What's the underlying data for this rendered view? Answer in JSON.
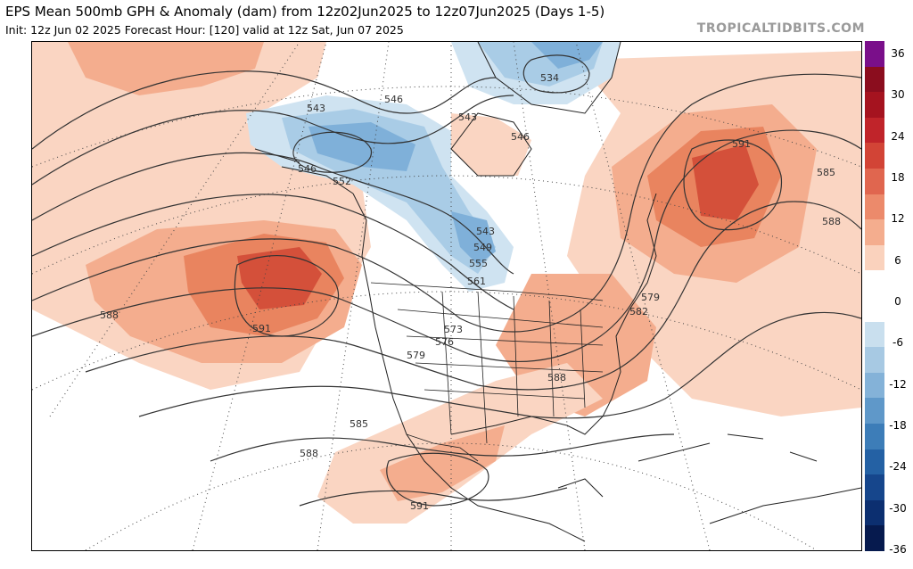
{
  "header": {
    "title": "EPS Mean 500mb GPH & Anomaly (dam) from 12z02Jun2025 to 12z07Jun2025 (Days 1-5)",
    "subtitle": "Init: 12z Jun 02 2025   Forecast Hour: [120]   valid at 12z Sat, Jun 07 2025",
    "brand": "TROPICALTIDBITS.COM"
  },
  "colorbar": {
    "ticks": [
      "36",
      "30",
      "24",
      "18",
      "12",
      "6",
      "0",
      "-6",
      "-12",
      "-18",
      "-24",
      "-30",
      "-36"
    ],
    "colors": [
      "#7a0f8a",
      "#8b0d1e",
      "#a5131f",
      "#c0242a",
      "#d24436",
      "#e0664f",
      "#ec8a6b",
      "#f4ad8e",
      "#fad2bd",
      "#ffffff",
      "#ffffff",
      "#c9dfee",
      "#a7c9e3",
      "#84b2d8",
      "#5f98c9",
      "#3d7db8",
      "#2461a4",
      "#16468c",
      "#0c2f70",
      "#061a4e"
    ]
  },
  "map": {
    "contour_labels": [
      "546",
      "534",
      "543",
      "543",
      "546",
      "546",
      "552",
      "543",
      "549",
      "555",
      "561",
      "591",
      "585",
      "588",
      "588",
      "591",
      "579",
      "582",
      "573",
      "576",
      "579",
      "588",
      "585",
      "588",
      "591"
    ],
    "colors": {
      "warm1": "#fad5c2",
      "warm2": "#f4ad8e",
      "warm3": "#e9845f",
      "warm4": "#d4503a",
      "cool1": "#cfe3f1",
      "cool2": "#a9cce6",
      "cool3": "#7fb0d9",
      "cool4": "#4f8cc6",
      "contour": "#333333",
      "border": "#222222",
      "grid": "#444444"
    }
  }
}
